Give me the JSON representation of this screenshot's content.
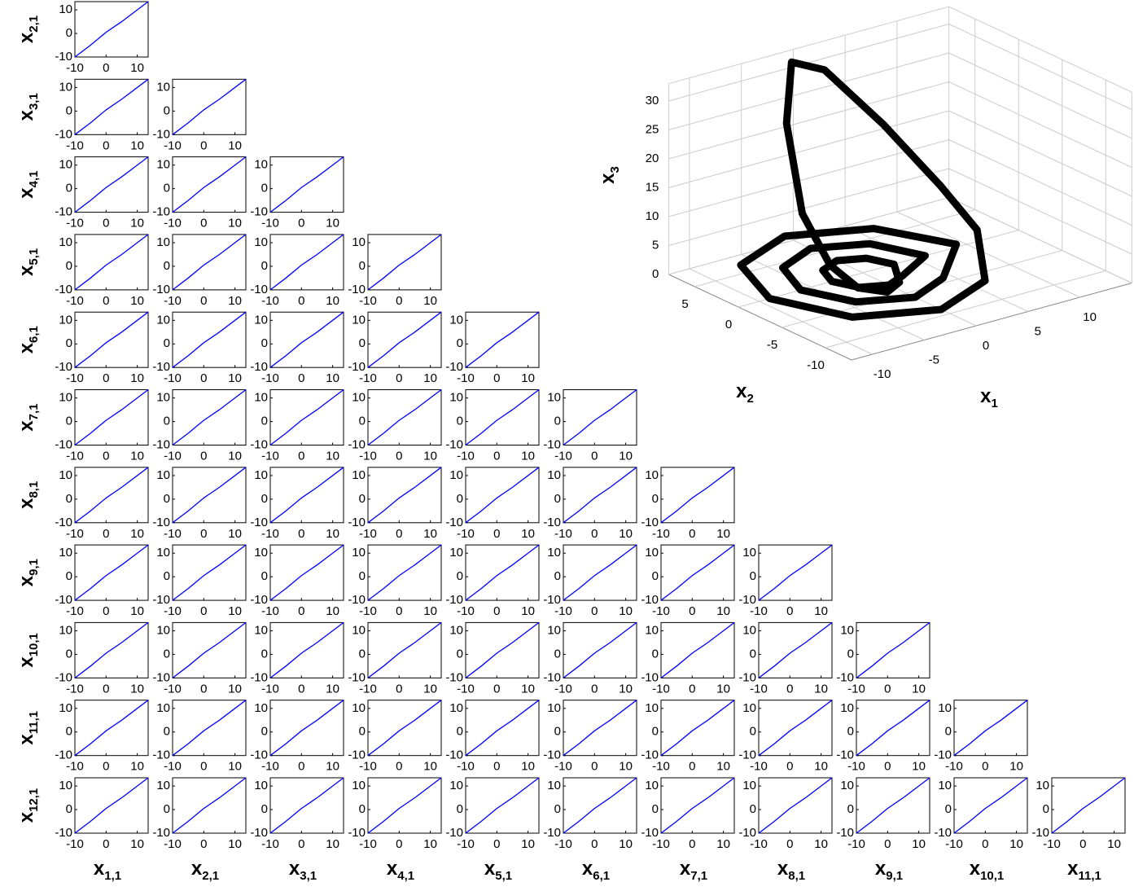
{
  "chart_data": [
    {
      "type": "scatter-matrix",
      "row_labels": [
        {
          "symbol": "x",
          "subscript": "2,1"
        },
        {
          "symbol": "x",
          "subscript": "3,1"
        },
        {
          "symbol": "x",
          "subscript": "4,1"
        },
        {
          "symbol": "x",
          "subscript": "5,1"
        },
        {
          "symbol": "x",
          "subscript": "6,1"
        },
        {
          "symbol": "x",
          "subscript": "7,1"
        },
        {
          "symbol": "x",
          "subscript": "8,1"
        },
        {
          "symbol": "x",
          "subscript": "9,1"
        },
        {
          "symbol": "x",
          "subscript": "10,1"
        },
        {
          "symbol": "x",
          "subscript": "11,1"
        },
        {
          "symbol": "x",
          "subscript": "12,1"
        }
      ],
      "col_labels": [
        {
          "symbol": "x",
          "subscript": "1,1"
        },
        {
          "symbol": "x",
          "subscript": "2,1"
        },
        {
          "symbol": "x",
          "subscript": "3,1"
        },
        {
          "symbol": "x",
          "subscript": "4,1"
        },
        {
          "symbol": "x",
          "subscript": "5,1"
        },
        {
          "symbol": "x",
          "subscript": "6,1"
        },
        {
          "symbol": "x",
          "subscript": "7,1"
        },
        {
          "symbol": "x",
          "subscript": "8,1"
        },
        {
          "symbol": "x",
          "subscript": "9,1"
        },
        {
          "symbol": "x",
          "subscript": "10,1"
        },
        {
          "symbol": "x",
          "subscript": "11,1"
        }
      ],
      "xlim": [
        -10,
        13.5
      ],
      "ylim": [
        -10,
        13.5
      ],
      "xticks": [
        -10,
        0,
        10
      ],
      "yticks": [
        -10,
        0,
        10
      ],
      "x": [
        -10,
        -5,
        0,
        5,
        10,
        13.5
      ],
      "values": [
        -10,
        -5,
        0.5,
        5,
        10,
        13.5
      ],
      "color": "#0000ff"
    },
    {
      "type": "line3d",
      "xlabel": {
        "symbol": "x",
        "subscript": "1"
      },
      "ylabel": {
        "symbol": "x",
        "subscript": "2"
      },
      "zlabel": {
        "symbol": "x",
        "subscript": "3"
      },
      "xlim": [
        -12,
        15
      ],
      "ylim": [
        -13,
        8
      ],
      "zlim": [
        0,
        33
      ],
      "xticks": [
        -10,
        -5,
        0,
        5,
        10
      ],
      "yticks": [
        -10,
        -5,
        0,
        5
      ],
      "zticks": [
        0,
        5,
        10,
        15,
        20,
        25,
        30
      ],
      "grid": true,
      "color": "#000000",
      "x": [
        3,
        2.1,
        0,
        -2.1,
        -3,
        -2.1,
        0,
        2.1,
        6,
        4.2,
        0,
        -4.2,
        -6,
        -4.2,
        0,
        4.2,
        9,
        6.4,
        0,
        -6.4,
        -9,
        -6.4,
        0,
        6.4,
        11,
        10,
        7,
        3,
        -1,
        -4,
        -5,
        -4,
        -3,
        -1,
        1,
        3
      ],
      "y": [
        0,
        2.1,
        3,
        2.1,
        0,
        -2.1,
        -3,
        -2.1,
        0,
        4.2,
        6,
        4.2,
        0,
        -4.2,
        -6,
        -4.2,
        0,
        6.4,
        9,
        6.4,
        0,
        -6.4,
        -9,
        -6.4,
        0,
        3,
        6,
        8,
        7,
        4,
        1,
        -1,
        -3,
        -4,
        -3,
        0
      ],
      "z": [
        0,
        0,
        0,
        0,
        0,
        0,
        0,
        0,
        0,
        0,
        0,
        0,
        0,
        0,
        0,
        0,
        0.5,
        0,
        0,
        0,
        0,
        0,
        0,
        0,
        2,
        8,
        18,
        28,
        32,
        25,
        12,
        4,
        1,
        0,
        0,
        0
      ]
    }
  ]
}
